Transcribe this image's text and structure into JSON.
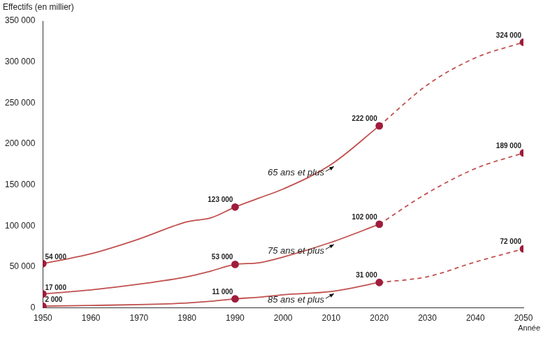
{
  "chart_data": {
    "type": "line",
    "y_label": "Effectifs (en millier)",
    "x_label": "Année",
    "x": [
      1950,
      1960,
      1970,
      1980,
      1985,
      1990,
      1995,
      2000,
      2010,
      2020,
      2030,
      2040,
      2050
    ],
    "xlim": [
      1950,
      2050
    ],
    "xticks": [
      1950,
      1960,
      1970,
      1980,
      1990,
      2000,
      2010,
      2020,
      2030,
      2040,
      2050
    ],
    "ylim": [
      0,
      350000
    ],
    "yticks": [
      0,
      {
        "value": 50000,
        "label": "50 000"
      },
      {
        "value": 100000,
        "label": "100 000"
      },
      {
        "value": 150000,
        "label": "150 000"
      },
      {
        "value": 200000,
        "label": "200 000"
      },
      {
        "value": 250000,
        "label": "250 000"
      },
      {
        "value": 300000,
        "label": "300 000"
      },
      {
        "value": 350000,
        "label": "350 000"
      }
    ],
    "grid": false,
    "data_labels": true,
    "series": [
      {
        "name": "65 ans et plus",
        "color": "#c0504d",
        "line_style": "solid",
        "marker": "circle",
        "values": [
          54000,
          66000,
          84000,
          105000,
          110000,
          123000,
          134000,
          145000,
          175000,
          222000,
          null,
          null,
          null
        ],
        "value_labels": [
          "54 000",
          null,
          null,
          null,
          null,
          "123 000",
          null,
          null,
          null,
          "222 000",
          null,
          null,
          null
        ]
      },
      {
        "color": "#c0504d",
        "line_style": "dashed",
        "marker": "circle",
        "values": [
          null,
          null,
          null,
          null,
          null,
          null,
          null,
          null,
          null,
          222000,
          272000,
          305000,
          324000
        ],
        "value_labels": [
          null,
          null,
          null,
          null,
          null,
          null,
          null,
          null,
          null,
          null,
          null,
          null,
          "324 000"
        ]
      },
      {
        "name": "75 ans et plus",
        "color": "#c0504d",
        "line_style": "solid",
        "marker": "circle",
        "values": [
          17000,
          22000,
          29000,
          38000,
          45000,
          53000,
          55000,
          62000,
          80000,
          102000,
          null,
          null,
          null
        ],
        "value_labels": [
          "17 000",
          null,
          null,
          null,
          null,
          "53 000",
          null,
          null,
          null,
          "102 000",
          null,
          null,
          null
        ]
      },
      {
        "color": "#c0504d",
        "line_style": "dashed",
        "marker": "circle",
        "values": [
          null,
          null,
          null,
          null,
          null,
          null,
          null,
          null,
          null,
          102000,
          140000,
          170000,
          189000
        ],
        "value_labels": [
          null,
          null,
          null,
          null,
          null,
          null,
          null,
          null,
          null,
          null,
          null,
          null,
          "189 000"
        ]
      },
      {
        "name": "85 ans et plus",
        "color": "#c0504d",
        "line_style": "solid",
        "marker": "circle",
        "values": [
          2000,
          3000,
          4000,
          6000,
          8000,
          11000,
          13000,
          16000,
          20000,
          31000,
          null,
          null,
          null
        ],
        "value_labels": [
          "2 000",
          null,
          null,
          null,
          null,
          "11 000",
          null,
          null,
          null,
          "31 000",
          null,
          null,
          null
        ]
      },
      {
        "color": "#c0504d",
        "line_style": "dashed",
        "marker": "circle",
        "values": [
          null,
          null,
          null,
          null,
          null,
          null,
          null,
          null,
          null,
          31000,
          38000,
          56000,
          72000
        ],
        "value_labels": [
          null,
          null,
          null,
          null,
          null,
          null,
          null,
          null,
          null,
          null,
          null,
          null,
          "72 000"
        ]
      }
    ]
  }
}
